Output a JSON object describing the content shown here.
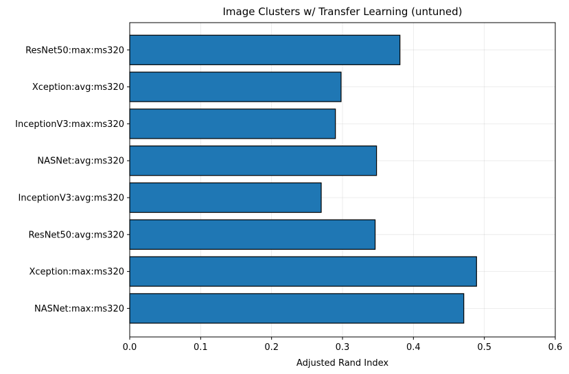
{
  "chart_data": {
    "type": "bar",
    "orientation": "horizontal",
    "title": "Image Clusters w/ Transfer Learning (untuned)",
    "xlabel": "Adjusted Rand Index",
    "ylabel": "",
    "xlim": [
      0,
      0.6
    ],
    "xticks": [
      "0.0",
      "0.1",
      "0.2",
      "0.3",
      "0.4",
      "0.5",
      "0.6"
    ],
    "categories": [
      "ResNet50:max:ms320",
      "Xception:avg:ms320",
      "InceptionV3:max:ms320",
      "NASNet:avg:ms320",
      "InceptionV3:avg:ms320",
      "ResNet50:avg:ms320",
      "Xception:max:ms320",
      "NASNet:max:ms320"
    ],
    "values": [
      0.381,
      0.298,
      0.29,
      0.348,
      0.27,
      0.346,
      0.489,
      0.471
    ],
    "bar_color": "#1f77b4",
    "edge_color": "#000000",
    "grid": true,
    "legend": "none"
  }
}
